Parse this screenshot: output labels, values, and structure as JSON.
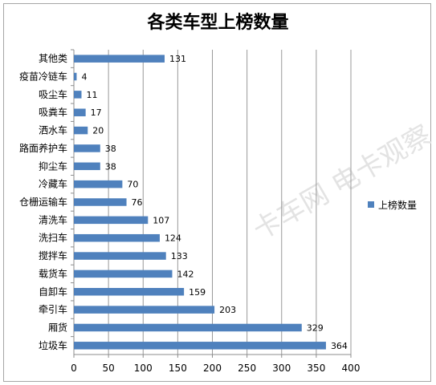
{
  "chart_data": {
    "type": "bar",
    "orientation": "horizontal",
    "title": "各类车型上榜数量",
    "categories": [
      "其他类",
      "疫苗冷链车",
      "吸尘车",
      "吸粪车",
      "洒水车",
      "路面养护车",
      "抑尘车",
      "冷藏车",
      "仓栅运输车",
      "清洗车",
      "洗扫车",
      "搅拌车",
      "载货车",
      "自卸车",
      "牵引车",
      "厢货",
      "垃圾车"
    ],
    "series": [
      {
        "name": "上榜数量",
        "values": [
          131,
          4,
          11,
          17,
          20,
          38,
          38,
          70,
          76,
          107,
          124,
          133,
          142,
          159,
          203,
          329,
          364
        ]
      }
    ],
    "xlim": [
      0,
      400
    ],
    "xticks": [
      0,
      50,
      100,
      150,
      200,
      250,
      300,
      350,
      400
    ],
    "grid": "vertical",
    "legend": "right",
    "bar_color": "#4f81bd",
    "watermark": "卡车网 电卡观察"
  }
}
